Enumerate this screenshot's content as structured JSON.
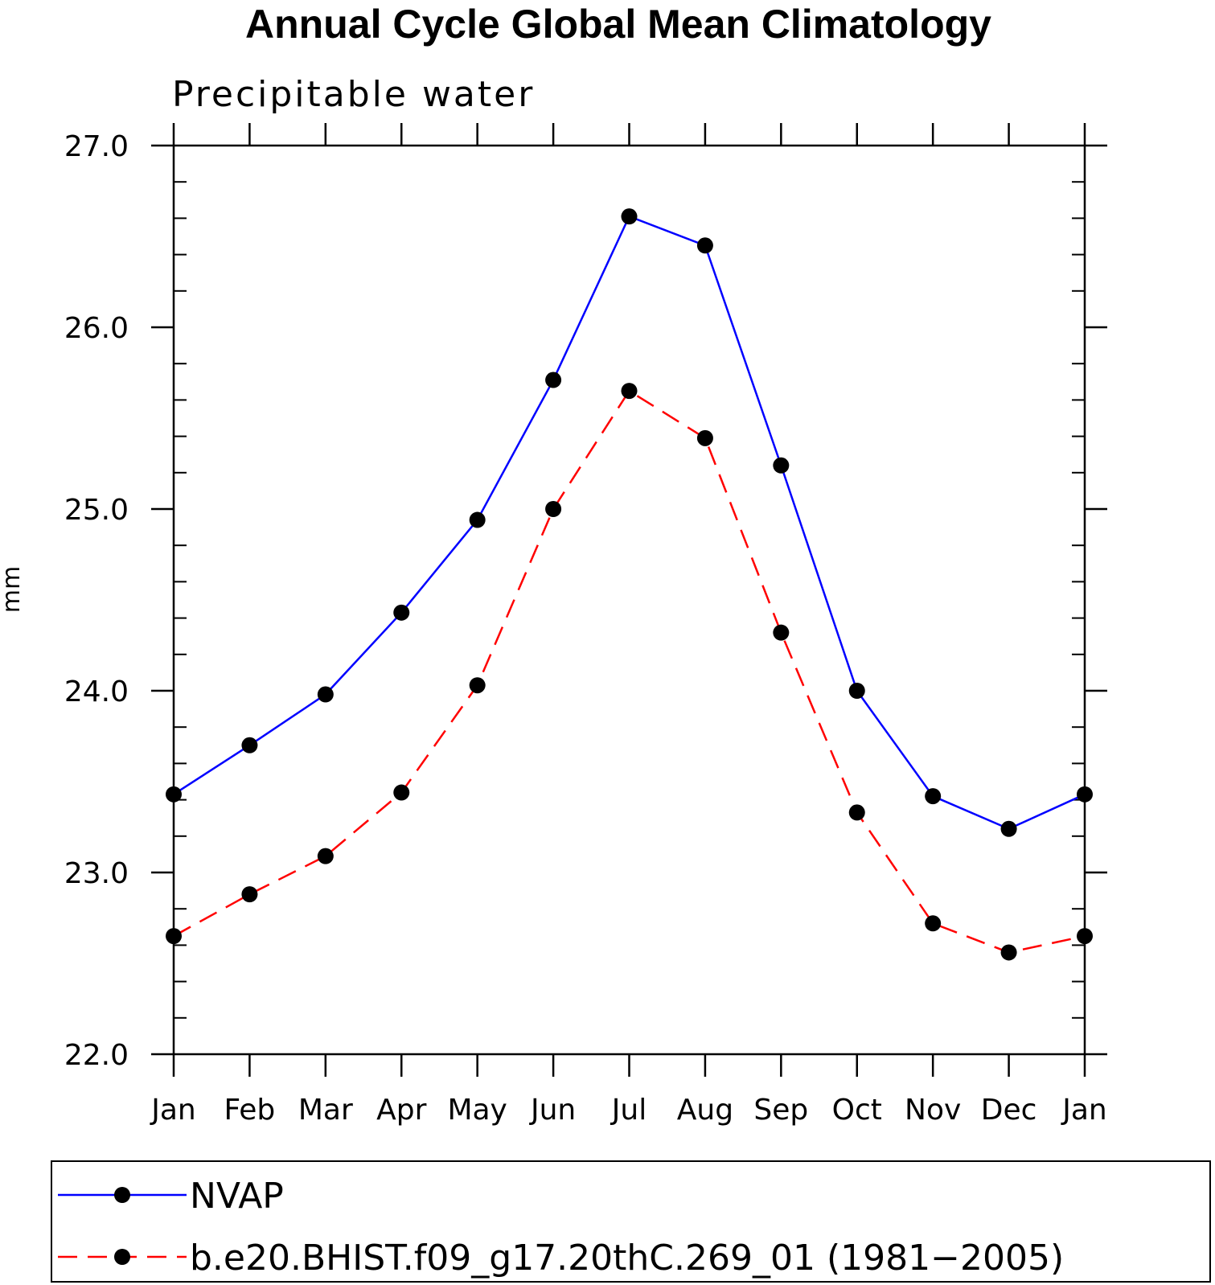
{
  "chart_data": {
    "type": "line",
    "title": "Annual Cycle Global Mean Climatology",
    "subtitle": "Precipitable water",
    "xlabel": "",
    "ylabel": "mm",
    "categories": [
      "Jan",
      "Feb",
      "Mar",
      "Apr",
      "May",
      "Jun",
      "Jul",
      "Aug",
      "Sep",
      "Oct",
      "Nov",
      "Dec",
      "Jan"
    ],
    "ylim": [
      22.0,
      27.0
    ],
    "yticks": [
      22.0,
      23.0,
      24.0,
      25.0,
      26.0,
      27.0
    ],
    "ytick_labels": [
      "22.0",
      "23.0",
      "24.0",
      "25.0",
      "26.0",
      "27.0"
    ],
    "grid": false,
    "legend": {
      "placement": "bottom"
    },
    "series": [
      {
        "name": "NVAP",
        "color": "#0000ff",
        "dash": "solid",
        "marker": "filled-circle",
        "values": [
          23.43,
          23.7,
          23.98,
          24.43,
          24.94,
          25.71,
          26.61,
          26.45,
          25.24,
          24.0,
          23.42,
          23.24,
          23.43
        ]
      },
      {
        "name": "b.e20.BHIST.f09_g17.20thC.269_01 (1981−2005)",
        "color": "#ff0000",
        "dash": "dashed",
        "marker": "filled-circle",
        "values": [
          22.65,
          22.88,
          23.09,
          23.44,
          24.03,
          25.0,
          25.65,
          25.39,
          24.32,
          23.33,
          22.72,
          22.56,
          22.65
        ]
      }
    ]
  }
}
